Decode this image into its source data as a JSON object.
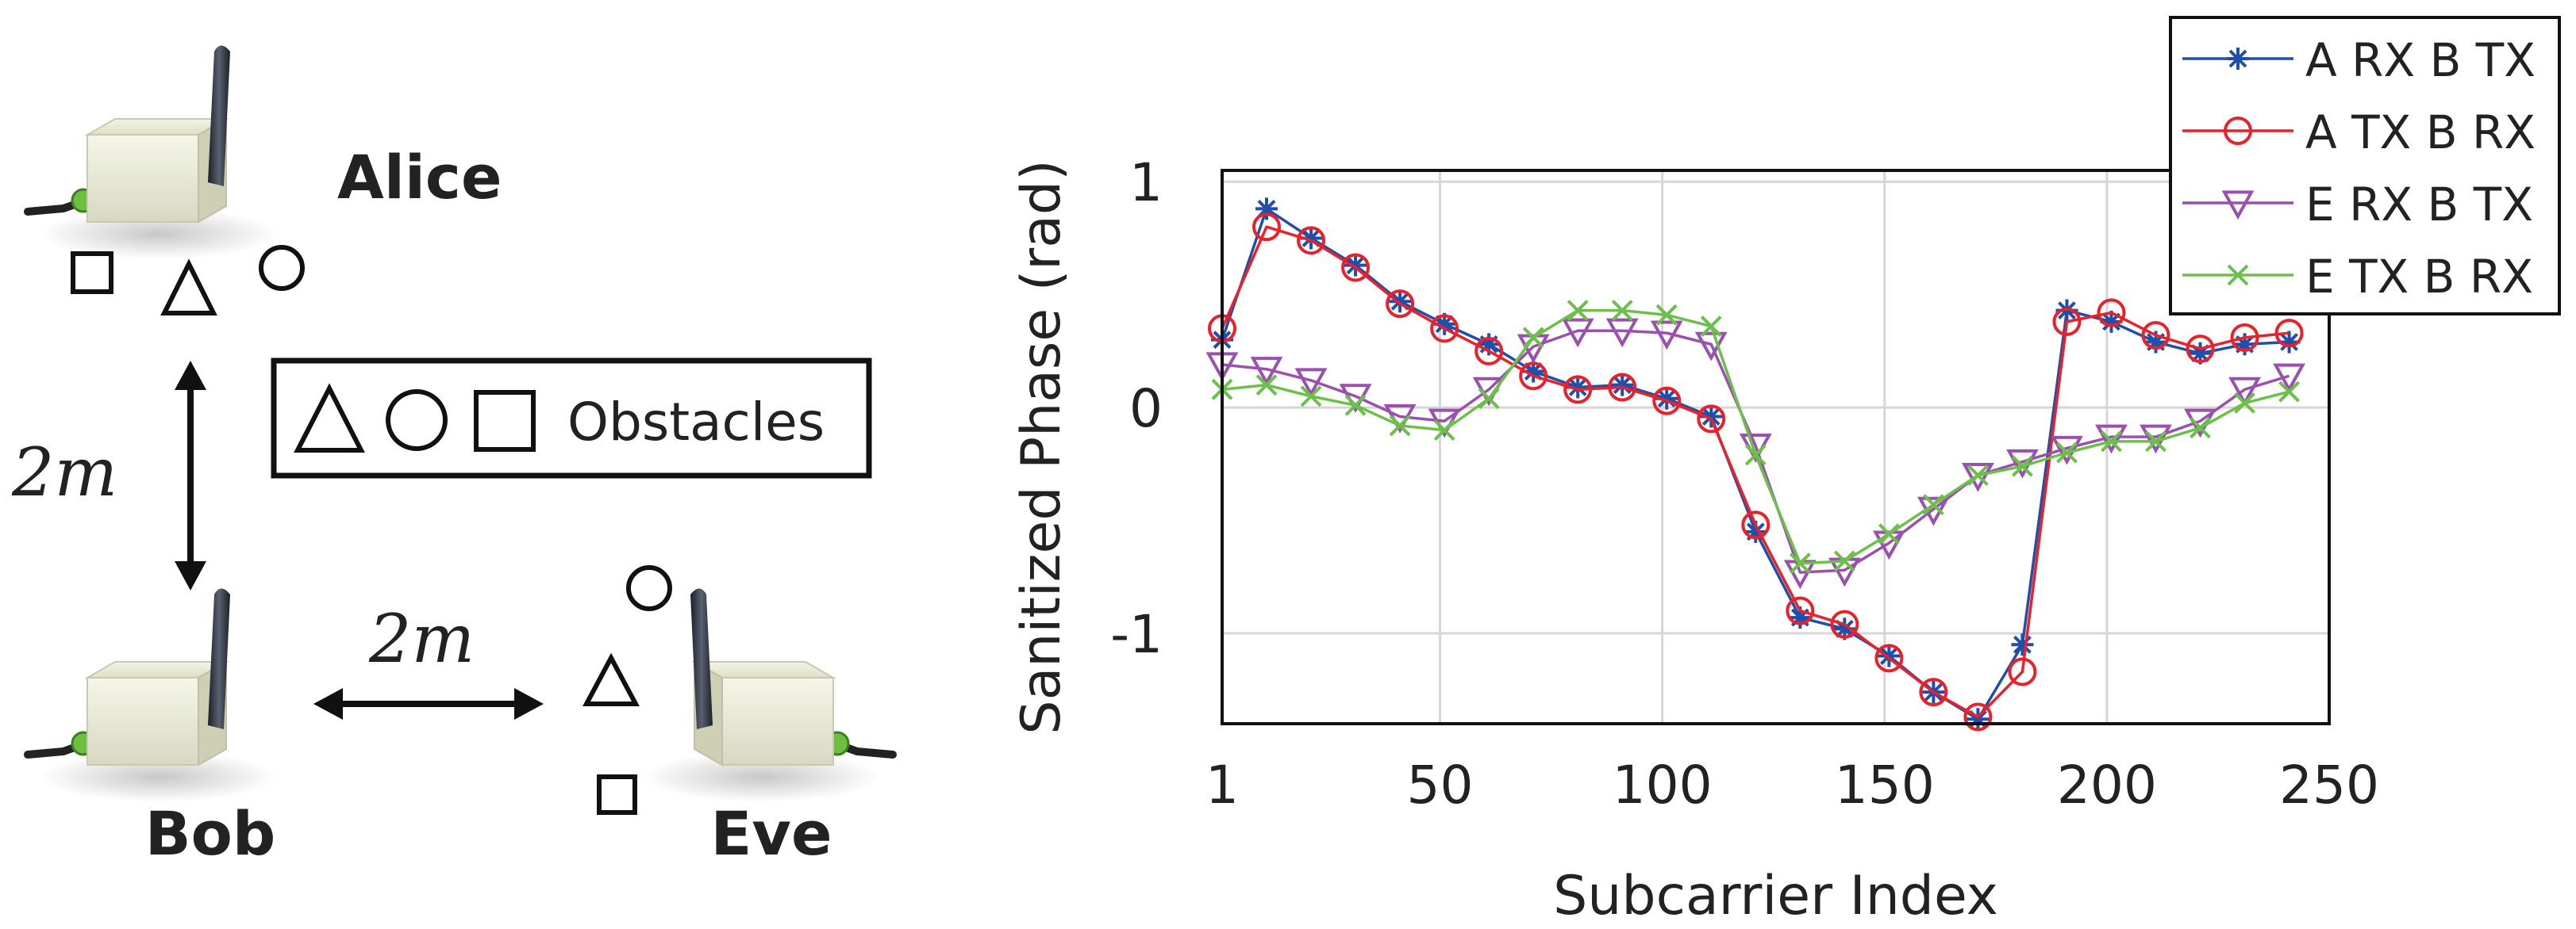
{
  "scene": {
    "nodes": [
      {
        "name": "Alice"
      },
      {
        "name": "Bob"
      },
      {
        "name": "Eve"
      }
    ],
    "distance_vertical": "2m",
    "distance_horizontal": "2m",
    "legend_text": "Obstacles"
  },
  "chart_data": {
    "type": "line",
    "title": "",
    "xlabel": "Subcarrier Index",
    "ylabel": "Sanitized Phase (rad)",
    "xlim": [
      1,
      250
    ],
    "ylim": [
      -1.4,
      1.05
    ],
    "xticks": [
      1,
      50,
      100,
      150,
      200,
      250
    ],
    "xtick_labels": [
      "1",
      "50",
      "100",
      "150",
      "200",
      "250"
    ],
    "yticks": [
      -1,
      0,
      1
    ],
    "ytick_labels": [
      "-1",
      "0",
      "1"
    ],
    "grid": true,
    "legend_position": "top-right",
    "x": [
      1,
      11,
      21,
      31,
      41,
      51,
      61,
      71,
      81,
      91,
      101,
      111,
      121,
      131,
      141,
      151,
      161,
      171,
      181,
      191,
      201,
      211,
      221,
      231,
      241
    ],
    "series": [
      {
        "name": "A RX B TX",
        "color": "#1f4fa8",
        "marker": "star",
        "values": [
          0.3,
          0.88,
          0.75,
          0.63,
          0.47,
          0.37,
          0.28,
          0.16,
          0.09,
          0.1,
          0.04,
          -0.04,
          -0.55,
          -0.93,
          -0.98,
          -1.1,
          -1.26,
          -1.38,
          -1.05,
          0.43,
          0.38,
          0.29,
          0.24,
          0.28,
          0.29
        ]
      },
      {
        "name": "A TX B RX",
        "color": "#e8212b",
        "marker": "circle",
        "values": [
          0.35,
          0.8,
          0.74,
          0.62,
          0.46,
          0.35,
          0.25,
          0.14,
          0.08,
          0.09,
          0.03,
          -0.05,
          -0.52,
          -0.9,
          -0.96,
          -1.11,
          -1.26,
          -1.37,
          -1.17,
          0.38,
          0.42,
          0.32,
          0.26,
          0.31,
          0.33
        ]
      },
      {
        "name": "E RX B TX",
        "color": "#9b4fae",
        "marker": "triangle-down",
        "values": [
          0.19,
          0.17,
          0.12,
          0.05,
          -0.04,
          -0.06,
          0.08,
          0.27,
          0.34,
          0.34,
          0.33,
          0.28,
          -0.17,
          -0.73,
          -0.72,
          -0.6,
          -0.45,
          -0.3,
          -0.24,
          -0.18,
          -0.13,
          -0.13,
          -0.06,
          0.08,
          0.14
        ]
      },
      {
        "name": "E TX B RX",
        "color": "#6cc04a",
        "marker": "x",
        "values": [
          0.08,
          0.1,
          0.05,
          0.01,
          -0.08,
          -0.1,
          0.04,
          0.31,
          0.43,
          0.43,
          0.41,
          0.36,
          -0.21,
          -0.69,
          -0.68,
          -0.56,
          -0.43,
          -0.3,
          -0.26,
          -0.2,
          -0.15,
          -0.15,
          -0.09,
          0.02,
          0.07
        ]
      }
    ]
  }
}
